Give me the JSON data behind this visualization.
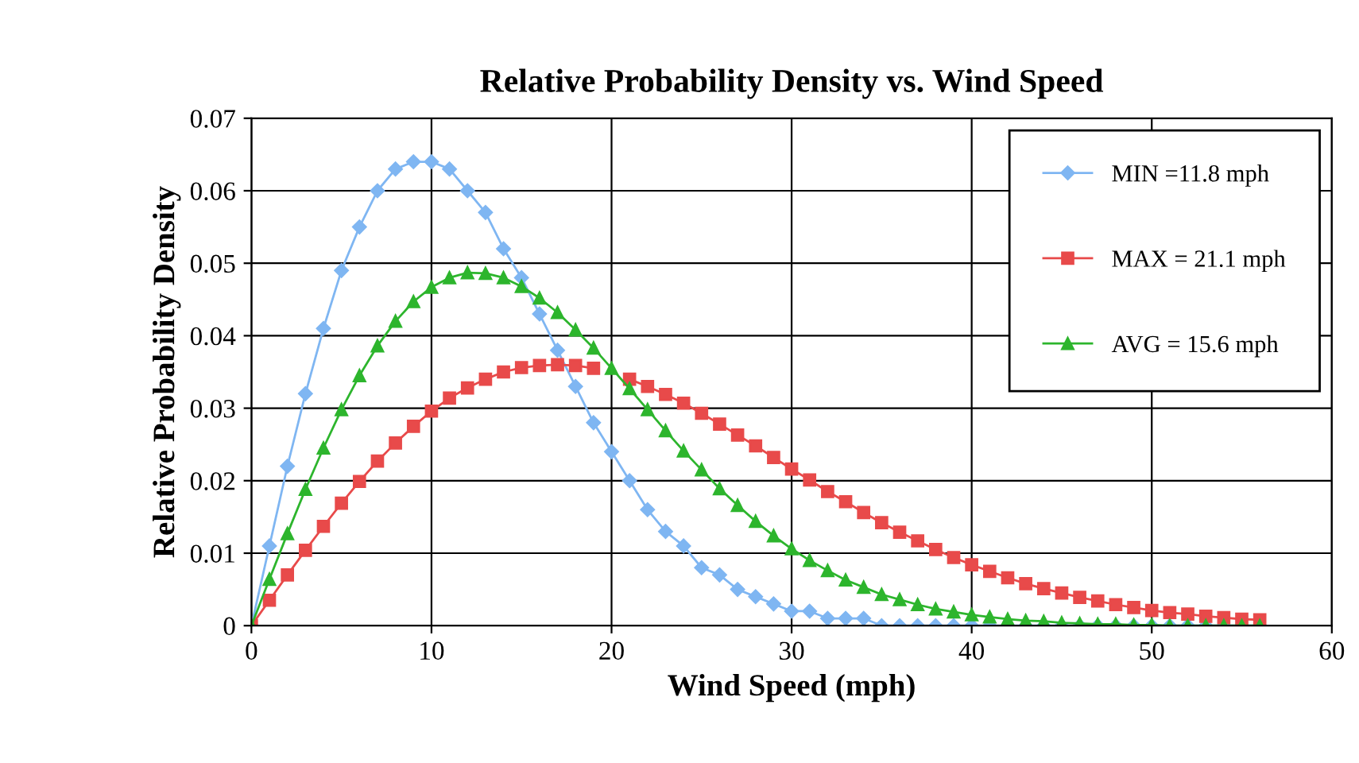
{
  "chart_data": {
    "type": "line",
    "title": "Relative Probability Density vs. Wind Speed",
    "xlabel": "Wind Speed (mph)",
    "ylabel": "Relative Probability Density",
    "x": [
      0,
      1,
      2,
      3,
      4,
      5,
      6,
      7,
      8,
      9,
      10,
      11,
      12,
      13,
      14,
      15,
      16,
      17,
      18,
      19,
      20,
      21,
      22,
      23,
      24,
      25,
      26,
      27,
      28,
      29,
      30,
      31,
      32,
      33,
      34,
      35,
      36,
      37,
      38,
      39,
      40,
      41,
      42,
      43,
      44,
      45,
      46,
      47,
      48,
      49,
      50,
      51,
      52,
      53,
      54,
      55,
      56
    ],
    "series": [
      {
        "name": "MIN =11.8 mph",
        "color": "#7fb6f2",
        "marker": "diamond",
        "values": [
          0,
          0.011,
          0.022,
          0.032,
          0.041,
          0.049,
          0.055,
          0.06,
          0.063,
          0.064,
          0.064,
          0.063,
          0.06,
          0.057,
          0.052,
          0.048,
          0.043,
          0.038,
          0.033,
          0.028,
          0.024,
          0.02,
          0.016,
          0.013,
          0.011,
          0.008,
          0.007,
          0.005,
          0.004,
          0.003,
          0.002,
          0.002,
          0.001,
          0.001,
          0.001,
          0,
          0,
          0,
          0,
          0,
          0,
          0,
          0,
          0,
          0,
          0,
          0,
          0,
          0,
          0,
          0,
          0,
          0,
          0,
          0,
          0,
          0
        ]
      },
      {
        "name": "MAX = 21.1 mph",
        "color": "#e84a4a",
        "marker": "square",
        "values": [
          0,
          0.0035,
          0.007,
          0.0104,
          0.0137,
          0.0169,
          0.0199,
          0.0227,
          0.0252,
          0.0275,
          0.0296,
          0.0314,
          0.0328,
          0.034,
          0.035,
          0.0356,
          0.0359,
          0.036,
          0.0359,
          0.0355,
          null,
          0.034,
          0.033,
          0.0319,
          0.0307,
          0.0293,
          0.0278,
          0.0263,
          0.0248,
          0.0232,
          0.0216,
          0.0201,
          0.0185,
          0.0171,
          0.0156,
          0.0142,
          0.0129,
          0.0117,
          0.0105,
          0.0094,
          0.0084,
          0.0075,
          0.0066,
          0.0058,
          0.0051,
          0.0045,
          0.0039,
          0.0034,
          0.0029,
          0.0025,
          0.0021,
          0.0018,
          0.0016,
          0.0013,
          0.0011,
          0.0009,
          0.0008
        ]
      },
      {
        "name": "AVG = 15.6 mph",
        "color": "#2db52d",
        "marker": "triangle",
        "values": [
          0,
          0.0064,
          0.0127,
          0.0188,
          0.0245,
          0.0298,
          0.0345,
          0.0386,
          0.042,
          0.0447,
          0.0467,
          0.048,
          0.0487,
          0.0486,
          0.048,
          0.0468,
          0.0452,
          0.0432,
          0.0408,
          0.0383,
          0.0355,
          0.0327,
          0.0298,
          0.0269,
          0.0241,
          0.0215,
          0.0189,
          0.0166,
          0.0144,
          0.0124,
          0.0106,
          0.009,
          0.0076,
          0.0063,
          0.0053,
          0.0043,
          0.0036,
          0.0029,
          0.0023,
          0.0019,
          0.0015,
          0.0012,
          0.0009,
          0.0007,
          0.0006,
          0.0004,
          0.0003,
          0.0002,
          0.0002,
          0.0001,
          0.0001,
          0,
          0,
          0,
          0,
          0,
          0
        ]
      }
    ],
    "xlim": [
      0,
      60
    ],
    "xticks": [
      0,
      10,
      20,
      30,
      40,
      50,
      60
    ],
    "ylim": [
      0,
      0.07
    ],
    "yticks": [
      0,
      0.01,
      0.02,
      0.03,
      0.04,
      0.05,
      0.06,
      0.07
    ],
    "grid": true,
    "legend": "top right",
    "line_style": "solid"
  }
}
